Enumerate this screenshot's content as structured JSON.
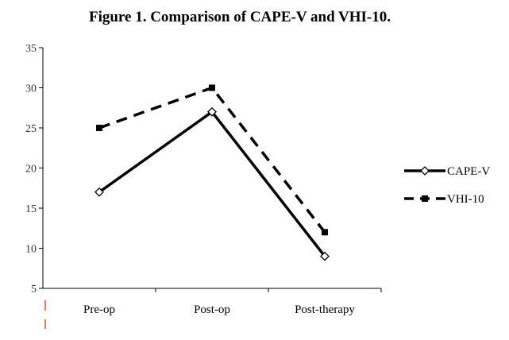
{
  "chart_data": {
    "type": "line",
    "title": "Figure 1. Comparison of CAPE-V and VHI-10.",
    "categories": [
      "Pre-op",
      "Post-op",
      "Post-therapy"
    ],
    "ylim": [
      5,
      35
    ],
    "yticks": [
      "5",
      "10",
      "15",
      "20",
      "25",
      "30",
      "35"
    ],
    "grid": false,
    "legend_position": "right",
    "series": [
      {
        "name": "CAPE-V",
        "values": [
          17,
          27,
          9
        ],
        "line": "solid",
        "marker": "diamond-open",
        "color": "#000000"
      },
      {
        "name": "VHI-10",
        "values": [
          25,
          30,
          12
        ],
        "line": "dashed",
        "marker": "square-filled",
        "color": "#000000"
      }
    ],
    "accent_color": "#e0502a"
  }
}
